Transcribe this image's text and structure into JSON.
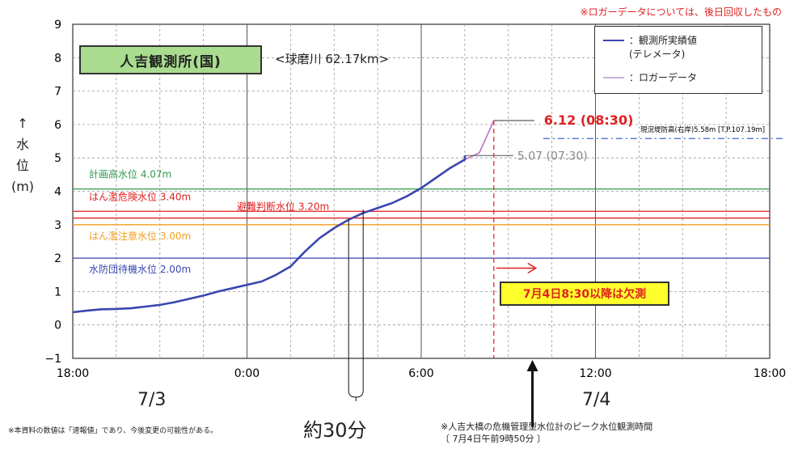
{
  "note_top": "※ロガーデータについては、後日回収したもの",
  "station": "人吉観測所(国)",
  "river": "<球磨川 62.17km>",
  "legend": {
    "observed": "：観測所実績値\n(テレメータ)",
    "logger": "：ロガーデータ"
  },
  "ylabel": "↑\n水\n位\n(m)",
  "dates": {
    "d1": "7/3",
    "d2": "7/4"
  },
  "peak_label": "6.12 (08:30)",
  "secondary_label": "5.07 (07:30)",
  "levee_label": "現況堤防高(右岸)5.58m [T.P.107.19m]",
  "missing_label": "7月4日8:30以降は欠測",
  "footnote_left": "※本資料の数値は「速報値」であり、今後変更の可能性がある。",
  "footnote_mid": "約30分",
  "footnote_right": "※人吉大橋の危機管理型水位計のピーク水位観測時間\n〔 7月4日午前9時50分 〕",
  "colors": {
    "observed": "#3a46b0",
    "logger": "#c26fc9",
    "plan": "#2e9b4e",
    "danger": "#e02020",
    "evac": "#e02020",
    "caution": "#f0a020",
    "standby": "#3a46b0",
    "levee": "#3a6ac8"
  },
  "chart_data": {
    "type": "line",
    "xlabel": "",
    "ylabel": "水位(m)",
    "x_ticks": [
      "18:00",
      "0:00",
      "6:00",
      "12:00",
      "18:00"
    ],
    "x_range_hours": [
      0,
      24
    ],
    "ylim": [
      -1,
      9
    ],
    "y_ticks": [
      -1,
      0,
      1,
      2,
      3,
      4,
      5,
      6,
      7,
      8,
      9
    ],
    "grid": true,
    "series": [
      {
        "name": "観測所実績値(テレメータ)",
        "x": [
          0,
          0.5,
          1,
          1.5,
          2,
          2.5,
          3,
          3.5,
          4,
          4.5,
          5,
          5.5,
          6,
          6.5,
          7,
          7.5,
          8,
          8.5,
          9,
          9.5,
          10,
          10.5,
          11,
          11.5,
          12,
          12.5,
          13,
          13.5,
          13.5
        ],
        "y": [
          0.38,
          0.43,
          0.47,
          0.48,
          0.5,
          0.55,
          0.6,
          0.68,
          0.78,
          0.88,
          1.0,
          1.1,
          1.2,
          1.3,
          1.5,
          1.75,
          2.2,
          2.6,
          2.9,
          3.15,
          3.35,
          3.5,
          3.65,
          3.85,
          4.1,
          4.4,
          4.7,
          4.95,
          5.07
        ]
      },
      {
        "name": "ロガーデータ",
        "x": [
          0,
          0.5,
          1,
          1.5,
          2,
          2.5,
          3,
          3.5,
          4,
          4.5,
          5,
          5.5,
          6,
          6.5,
          7,
          7.5,
          8,
          8.5,
          9,
          9.5,
          10,
          10.5,
          11,
          11.5,
          12,
          12.5,
          13,
          13.5,
          14,
          14.5
        ],
        "y": [
          0.38,
          0.43,
          0.47,
          0.48,
          0.5,
          0.55,
          0.6,
          0.68,
          0.78,
          0.88,
          1.0,
          1.1,
          1.2,
          1.3,
          1.5,
          1.75,
          2.2,
          2.6,
          2.9,
          3.15,
          3.35,
          3.5,
          3.65,
          3.85,
          4.1,
          4.4,
          4.7,
          4.95,
          5.15,
          6.12
        ]
      }
    ],
    "reference_lines": [
      {
        "name": "計画高水位 4.07m",
        "value": 4.07,
        "color_key": "plan"
      },
      {
        "name": "はん濫危険水位 3.40m",
        "value": 3.4,
        "color_key": "danger"
      },
      {
        "name": "避難判断水位 3.20m",
        "value": 3.2,
        "color_key": "evac"
      },
      {
        "name": "はん濫注意水位 3.00m",
        "value": 3.0,
        "color_key": "caution"
      },
      {
        "name": "水防団待機水位 2.00m",
        "value": 2.0,
        "color_key": "standby"
      }
    ],
    "levee": {
      "value": 5.58
    },
    "peak": {
      "x": 14.5,
      "y": 6.12
    },
    "secondary": {
      "x": 13.5,
      "y": 5.07
    },
    "missing_from_x": 14.5,
    "obs_time_x": 15.83,
    "interval_x": [
      9.5,
      10.0
    ]
  }
}
